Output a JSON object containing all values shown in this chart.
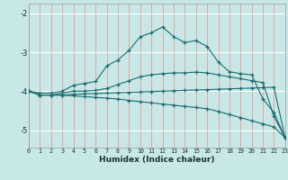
{
  "xlabel": "Humidex (Indice chaleur)",
  "background_color": "#c8e8e8",
  "grid_color_h": "#ffffff",
  "grid_color_v": "#e8a0a0",
  "line_color": "#1a6b6b",
  "xlim": [
    0,
    23
  ],
  "ylim": [
    -5.45,
    -1.75
  ],
  "yticks": [
    -5,
    -4,
    -3,
    -2
  ],
  "x_ticks": [
    0,
    1,
    2,
    3,
    4,
    5,
    6,
    7,
    8,
    9,
    10,
    11,
    12,
    13,
    14,
    15,
    16,
    17,
    18,
    19,
    20,
    21,
    22,
    23
  ],
  "line1_x": [
    0,
    1,
    2,
    3,
    4,
    5,
    6,
    7,
    8,
    9,
    10,
    11,
    12,
    13,
    14,
    15,
    16,
    17,
    18,
    19,
    20,
    21,
    22,
    23
  ],
  "line1_y": [
    -4.0,
    -4.05,
    -4.05,
    -4.0,
    -3.85,
    -3.8,
    -3.75,
    -3.35,
    -3.2,
    -2.95,
    -2.6,
    -2.5,
    -2.35,
    -2.6,
    -2.75,
    -2.7,
    -2.85,
    -3.25,
    -3.5,
    -3.55,
    -3.58,
    -4.2,
    -4.55,
    -5.2
  ],
  "line2_x": [
    0,
    1,
    2,
    3,
    4,
    5,
    6,
    7,
    8,
    9,
    10,
    11,
    12,
    13,
    14,
    15,
    16,
    17,
    18,
    19,
    20,
    21,
    22,
    23
  ],
  "line2_y": [
    -4.0,
    -4.1,
    -4.1,
    -4.05,
    -4.0,
    -4.0,
    -3.98,
    -3.93,
    -3.83,
    -3.73,
    -3.63,
    -3.58,
    -3.55,
    -3.53,
    -3.53,
    -3.51,
    -3.53,
    -3.58,
    -3.63,
    -3.68,
    -3.73,
    -3.78,
    -4.65,
    -5.2
  ],
  "line3_x": [
    0,
    1,
    2,
    3,
    4,
    5,
    6,
    7,
    8,
    9,
    10,
    11,
    12,
    13,
    14,
    15,
    16,
    17,
    18,
    19,
    20,
    21,
    22,
    23
  ],
  "line3_y": [
    -4.0,
    -4.1,
    -4.1,
    -4.1,
    -4.08,
    -4.07,
    -4.06,
    -4.05,
    -4.04,
    -4.03,
    -4.02,
    -4.01,
    -4.0,
    -3.99,
    -3.98,
    -3.97,
    -3.96,
    -3.95,
    -3.94,
    -3.93,
    -3.92,
    -3.91,
    -3.9,
    -5.2
  ],
  "line4_x": [
    0,
    1,
    2,
    3,
    4,
    5,
    6,
    7,
    8,
    9,
    10,
    11,
    12,
    13,
    14,
    15,
    16,
    17,
    18,
    19,
    20,
    21,
    22,
    23
  ],
  "line4_y": [
    -4.0,
    -4.1,
    -4.1,
    -4.1,
    -4.12,
    -4.14,
    -4.16,
    -4.18,
    -4.2,
    -4.24,
    -4.27,
    -4.3,
    -4.33,
    -4.36,
    -4.39,
    -4.42,
    -4.45,
    -4.52,
    -4.6,
    -4.68,
    -4.76,
    -4.84,
    -4.92,
    -5.2
  ]
}
